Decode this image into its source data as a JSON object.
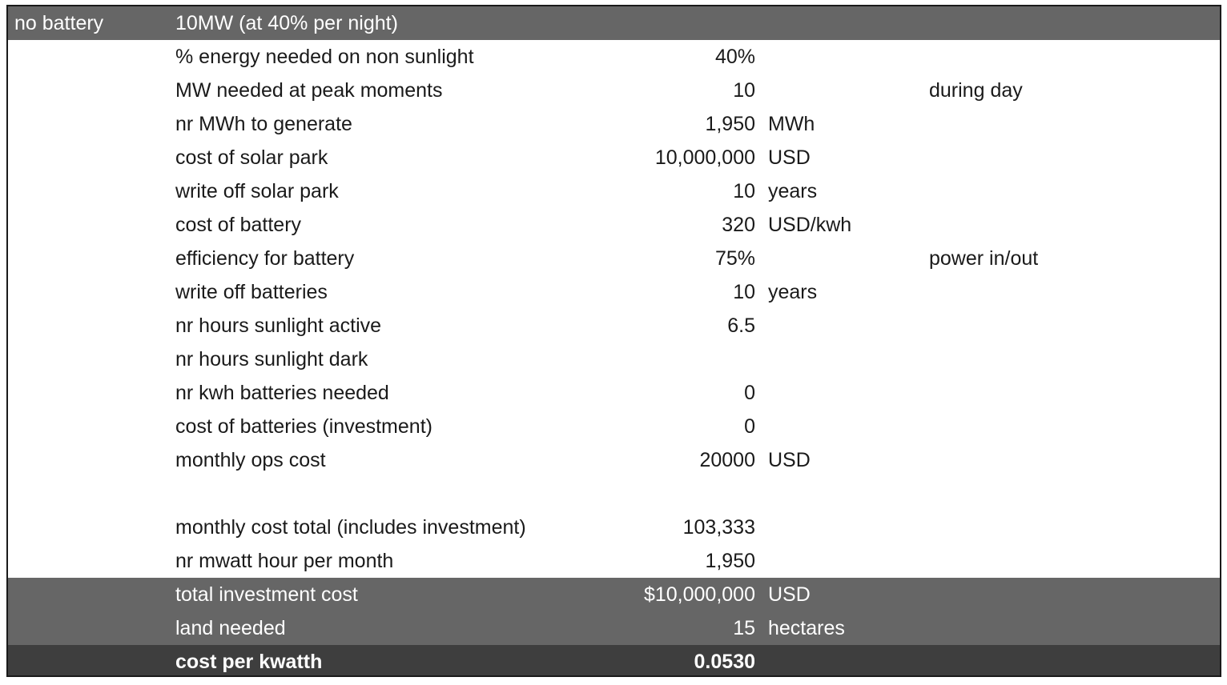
{
  "header": {
    "col_a": "no battery",
    "col_b": "10MW (at 40% per night)"
  },
  "rows": [
    {
      "label": "% energy needed on non sunlight",
      "value": "40%",
      "unit": "",
      "note": ""
    },
    {
      "label": "MW needed at peak moments",
      "value": "10",
      "unit": "",
      "note": "during day"
    },
    {
      "label": "nr MWh to generate",
      "value": "1,950",
      "unit": "MWh",
      "note": ""
    },
    {
      "label": "cost of solar park",
      "value": "10,000,000",
      "unit": "USD",
      "note": ""
    },
    {
      "label": "write off solar park",
      "value": "10",
      "unit": "years",
      "note": ""
    },
    {
      "label": "cost of battery",
      "value": "320",
      "unit": "USD/kwh",
      "note": ""
    },
    {
      "label": "efficiency for battery",
      "value": "75%",
      "unit": "",
      "note": "power in/out"
    },
    {
      "label": "write off batteries",
      "value": "10",
      "unit": "years",
      "note": ""
    },
    {
      "label": "nr hours sunlight active",
      "value": "6.5",
      "unit": "",
      "note": ""
    },
    {
      "label": "nr hours sunlight dark",
      "value": "",
      "unit": "",
      "note": ""
    },
    {
      "label": "nr kwh batteries needed",
      "value": "0",
      "unit": "",
      "note": ""
    },
    {
      "label": "cost of batteries (investment)",
      "value": "0",
      "unit": "",
      "note": ""
    },
    {
      "label": "monthly ops cost",
      "value": "20000",
      "unit": "USD",
      "note": ""
    },
    {
      "label": "",
      "value": "",
      "unit": "",
      "note": ""
    },
    {
      "label": "monthly cost total (includes investment)",
      "value": "103,333",
      "unit": "",
      "note": ""
    },
    {
      "label": "nr mwatt hour per month",
      "value": "1,950",
      "unit": "",
      "note": ""
    }
  ],
  "summary": [
    {
      "label": "total investment cost",
      "value": "$10,000,000",
      "unit": "USD"
    },
    {
      "label": "land needed",
      "value": "15",
      "unit": "hectares"
    }
  ],
  "result": {
    "label": "cost per kwatth",
    "value": "0.0530"
  },
  "colors": {
    "header_bg": "#666666",
    "summary_bg": "#666666",
    "result_bg": "#3e3e3e",
    "border": "#1a1a1a"
  }
}
